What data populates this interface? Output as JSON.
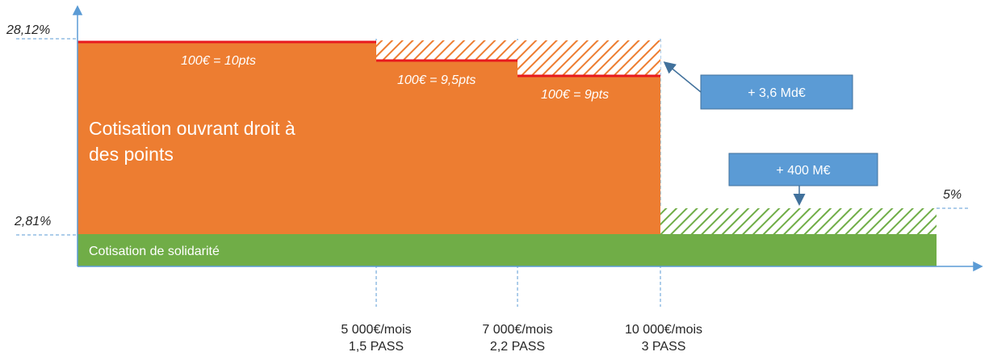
{
  "y_labels": {
    "top": "28,12%",
    "mid": "2,81%",
    "right": "5%"
  },
  "points": {
    "tier1": "100€ = 10pts",
    "tier2": "100€ = 9,5pts",
    "tier3": "100€ = 9pts"
  },
  "main_label": {
    "line1": "Cotisation ouvrant droit à",
    "line2": "des points"
  },
  "solidarity_label": "Cotisation de solidarité",
  "callouts": {
    "gain_high": "+ 3,6 Md€",
    "gain_low": "+ 400 M€"
  },
  "thresholds": [
    {
      "amount": "5 000€/mois",
      "pass": "1,5 PASS"
    },
    {
      "amount": "7 000€/mois",
      "pass": "2,2 PASS"
    },
    {
      "amount": "10 000€/mois",
      "pass": "3 PASS"
    }
  ],
  "colors": {
    "orange": "#ED7D31",
    "green": "#70AD47",
    "red": "#E8191E",
    "blue": "#5B9BD5",
    "callout_border": "#41719C"
  }
}
